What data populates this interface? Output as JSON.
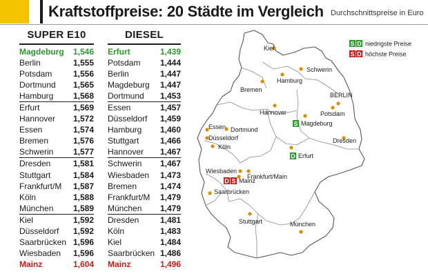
{
  "header": {
    "title": "Kraftstoffpreise: 20 Städte im Vergleich",
    "subtitle": "Durchschnittspreise in Euro"
  },
  "super_e10": {
    "heading": "SUPER E10",
    "rows": [
      {
        "city": "Magdeburg",
        "price": "1,546"
      },
      {
        "city": "Berlin",
        "price": "1,555"
      },
      {
        "city": "Potsdam",
        "price": "1,556"
      },
      {
        "city": "Dortmund",
        "price": "1,565"
      },
      {
        "city": "Hamburg",
        "price": "1,568"
      },
      {
        "city": "Erfurt",
        "price": "1,569"
      },
      {
        "city": "Hannover",
        "price": "1,572"
      },
      {
        "city": "Essen",
        "price": "1,574"
      },
      {
        "city": "Bremen",
        "price": "1,576"
      },
      {
        "city": "Schwerin",
        "price": "1,577"
      },
      {
        "city": "Dresden",
        "price": "1,581"
      },
      {
        "city": "Stuttgart",
        "price": "1,584"
      },
      {
        "city": "Frankfurt/M",
        "price": "1,587"
      },
      {
        "city": "Köln",
        "price": "1,588"
      },
      {
        "city": "München",
        "price": "1,589"
      },
      {
        "city": "Kiel",
        "price": "1,592"
      },
      {
        "city": "Düsseldorf",
        "price": "1,592"
      },
      {
        "city": "Saarbrücken",
        "price": "1,596"
      },
      {
        "city": "Wiesbaden",
        "price": "1,596"
      },
      {
        "city": "Mainz",
        "price": "1,604"
      }
    ]
  },
  "diesel": {
    "heading": "DIESEL",
    "rows": [
      {
        "city": "Erfurt",
        "price": "1,439"
      },
      {
        "city": "Potsdam",
        "price": "1,444"
      },
      {
        "city": "Berlin",
        "price": "1,447"
      },
      {
        "city": "Magdeburg",
        "price": "1,447"
      },
      {
        "city": "Dortmund",
        "price": "1,453"
      },
      {
        "city": "Essen",
        "price": "1,457"
      },
      {
        "city": "Düsseldorf",
        "price": "1,459"
      },
      {
        "city": "Hamburg",
        "price": "1,460"
      },
      {
        "city": "Stuttgart",
        "price": "1,466"
      },
      {
        "city": "Hannover",
        "price": "1,467"
      },
      {
        "city": "Schwerin",
        "price": "1,467"
      },
      {
        "city": "Wiesbaden",
        "price": "1,473"
      },
      {
        "city": "Bremen",
        "price": "1,474"
      },
      {
        "city": "Frankfurt/M",
        "price": "1,479"
      },
      {
        "city": "München",
        "price": "1,479"
      },
      {
        "city": "Dresden",
        "price": "1,481"
      },
      {
        "city": "Köln",
        "price": "1,483"
      },
      {
        "city": "Kiel",
        "price": "1,484"
      },
      {
        "city": "Saarbrücken",
        "price": "1,486"
      },
      {
        "city": "Mainz",
        "price": "1,496"
      }
    ]
  },
  "legend": {
    "best_badge_s": "S",
    "best_badge_d": "D",
    "best_label": "niedrigste Preise",
    "worst_badge_s": "S",
    "worst_badge_d": "D",
    "worst_label": "höchste Preise"
  },
  "colors": {
    "best": "#2a9a2a",
    "worst": "#d11919",
    "dot": "#d98c00",
    "accent": "#f4c400"
  },
  "map": {
    "cities": [
      {
        "id": "kiel",
        "name": "Kiel"
      },
      {
        "id": "hamburg",
        "name": "Hamburg"
      },
      {
        "id": "schwerin",
        "name": "Schwerin"
      },
      {
        "id": "bremen",
        "name": "Bremen"
      },
      {
        "id": "berlin",
        "name": "BERLIN"
      },
      {
        "id": "potsdam",
        "name": "Potsdam"
      },
      {
        "id": "hannover",
        "name": "Hannover"
      },
      {
        "id": "magdeburg",
        "name": "Magdeburg",
        "badge": "S"
      },
      {
        "id": "essen",
        "name": "Essen"
      },
      {
        "id": "dortmund",
        "name": "Dortmund"
      },
      {
        "id": "duesseldorf",
        "name": "Düsseldorf"
      },
      {
        "id": "koeln",
        "name": "Köln"
      },
      {
        "id": "erfurt",
        "name": "Erfurt",
        "badge": "D"
      },
      {
        "id": "dresden",
        "name": "Dresden"
      },
      {
        "id": "wiesbaden",
        "name": "Wiesbaden"
      },
      {
        "id": "frankfurt",
        "name": "Frankfurt/Main"
      },
      {
        "id": "mainz",
        "name": "Mainz",
        "badge_s": "D",
        "badge_d": "S"
      },
      {
        "id": "saarbruecken",
        "name": "Saarbrücken"
      },
      {
        "id": "stuttgart",
        "name": "Stuttgart"
      },
      {
        "id": "muenchen",
        "name": "München"
      }
    ]
  }
}
